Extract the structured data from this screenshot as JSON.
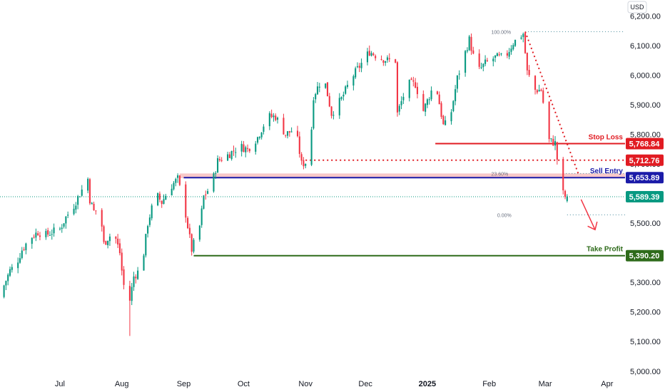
{
  "chart_data": {
    "type": "candlestick",
    "currency": "USD",
    "y_ticks": [
      5000,
      5100,
      5200,
      5300,
      5400,
      5500,
      5600,
      5700,
      5800,
      5900,
      6000,
      6100,
      6200
    ],
    "y_tick_labels": [
      "5,000.00",
      "5,100.00",
      "5,200.00",
      "5,300.00",
      "5,400.00",
      "5,500.00",
      "5,600.00",
      "5,700.00",
      "5,800.00",
      "5,900.00",
      "6,000.00",
      "6,100.00",
      "6,200.00"
    ],
    "ylim": [
      4985,
      6230
    ],
    "x_axis": {
      "start": "2024-06-01",
      "end": "2025-04-10",
      "ticks": [
        {
          "date": "2024-07-01",
          "label": "Jul"
        },
        {
          "date": "2024-08-01",
          "label": "Aug"
        },
        {
          "date": "2024-09-01",
          "label": "Sep"
        },
        {
          "date": "2024-10-01",
          "label": "Oct"
        },
        {
          "date": "2024-11-01",
          "label": "Nov"
        },
        {
          "date": "2024-12-01",
          "label": "Dec"
        },
        {
          "date": "2025-01-01",
          "label": "2025",
          "bold": true
        },
        {
          "date": "2025-02-01",
          "label": "Feb"
        },
        {
          "date": "2025-03-01",
          "label": "Mar"
        },
        {
          "date": "2025-04-01",
          "label": "Apr"
        }
      ]
    },
    "levels": [
      {
        "name": "Stop Loss",
        "value": 5768.84,
        "label": "5,768.84",
        "color": "#e11b22",
        "start": "2025-01-05"
      },
      {
        "name": "",
        "value": 5712.76,
        "label": "5,712.76",
        "color": "#e11b22",
        "start": "2024-11-01",
        "dotted": true
      },
      {
        "name": "Sell Entry",
        "value": 5653.89,
        "label": "5,653.89",
        "color": "#1b1ba8",
        "start": "2024-09-01"
      },
      {
        "name": "Take Profit",
        "value": 5390.2,
        "label": "5,390.20",
        "color": "#2e6b1a",
        "start": "2024-09-06"
      }
    ],
    "current_price": {
      "value": 5589.39,
      "label": "5,589.39",
      "color": "#089981"
    },
    "fib_levels": [
      {
        "label": "100.00%",
        "value": 6147
      },
      {
        "label": "23.60%",
        "value": 5668
      },
      {
        "label": "0.00%",
        "value": 5528
      }
    ],
    "closes": [
      {
        "date": "2024-06-01",
        "close": 5270
      },
      {
        "date": "2024-06-04",
        "close": 5290
      },
      {
        "date": "2024-06-07",
        "close": 5340
      },
      {
        "date": "2024-06-10",
        "close": 5360
      },
      {
        "date": "2024-06-13",
        "close": 5410
      },
      {
        "date": "2024-06-17",
        "close": 5450
      },
      {
        "date": "2024-06-21",
        "close": 5470
      },
      {
        "date": "2024-06-25",
        "close": 5460
      },
      {
        "date": "2024-06-28",
        "close": 5470
      },
      {
        "date": "2024-07-02",
        "close": 5480
      },
      {
        "date": "2024-07-05",
        "close": 5520
      },
      {
        "date": "2024-07-09",
        "close": 5560
      },
      {
        "date": "2024-07-12",
        "close": 5600
      },
      {
        "date": "2024-07-16",
        "close": 5650
      },
      {
        "date": "2024-07-17",
        "close": 5580
      },
      {
        "date": "2024-07-19",
        "close": 5540
      },
      {
        "date": "2024-07-22",
        "close": 5550
      },
      {
        "date": "2024-07-24",
        "close": 5430
      },
      {
        "date": "2024-07-26",
        "close": 5450
      },
      {
        "date": "2024-07-29",
        "close": 5470
      },
      {
        "date": "2024-08-01",
        "close": 5400
      },
      {
        "date": "2024-08-02",
        "close": 5340
      },
      {
        "date": "2024-08-05",
        "close": 5190
      },
      {
        "date": "2024-08-06",
        "close": 5240
      },
      {
        "date": "2024-08-08",
        "close": 5320
      },
      {
        "date": "2024-08-12",
        "close": 5350
      },
      {
        "date": "2024-08-15",
        "close": 5500
      },
      {
        "date": "2024-08-19",
        "close": 5600
      },
      {
        "date": "2024-08-22",
        "close": 5570
      },
      {
        "date": "2024-08-26",
        "close": 5620
      },
      {
        "date": "2024-08-30",
        "close": 5650
      },
      {
        "date": "2024-09-03",
        "close": 5530
      },
      {
        "date": "2024-09-06",
        "close": 5410
      },
      {
        "date": "2024-09-10",
        "close": 5490
      },
      {
        "date": "2024-09-12",
        "close": 5590
      },
      {
        "date": "2024-09-16",
        "close": 5630
      },
      {
        "date": "2024-09-19",
        "close": 5710
      },
      {
        "date": "2024-09-24",
        "close": 5730
      },
      {
        "date": "2024-09-30",
        "close": 5760
      },
      {
        "date": "2024-10-04",
        "close": 5750
      },
      {
        "date": "2024-10-09",
        "close": 5790
      },
      {
        "date": "2024-10-14",
        "close": 5860
      },
      {
        "date": "2024-10-18",
        "close": 5860
      },
      {
        "date": "2024-10-23",
        "close": 5800
      },
      {
        "date": "2024-10-28",
        "close": 5820
      },
      {
        "date": "2024-10-31",
        "close": 5700
      },
      {
        "date": "2024-11-04",
        "close": 5710
      },
      {
        "date": "2024-11-06",
        "close": 5930
      },
      {
        "date": "2024-11-11",
        "close": 6000
      },
      {
        "date": "2024-11-15",
        "close": 5870
      },
      {
        "date": "2024-11-20",
        "close": 5920
      },
      {
        "date": "2024-11-25",
        "close": 5990
      },
      {
        "date": "2024-11-29",
        "close": 6030
      },
      {
        "date": "2024-12-04",
        "close": 6080
      },
      {
        "date": "2024-12-09",
        "close": 6060
      },
      {
        "date": "2024-12-13",
        "close": 6050
      },
      {
        "date": "2024-12-17",
        "close": 6050
      },
      {
        "date": "2024-12-18",
        "close": 5870
      },
      {
        "date": "2024-12-23",
        "close": 5970
      },
      {
        "date": "2024-12-27",
        "close": 5970
      },
      {
        "date": "2024-12-31",
        "close": 5880
      },
      {
        "date": "2025-01-06",
        "close": 5980
      },
      {
        "date": "2025-01-10",
        "close": 5830
      },
      {
        "date": "2025-01-13",
        "close": 5840
      },
      {
        "date": "2025-01-17",
        "close": 5990
      },
      {
        "date": "2025-01-23",
        "close": 6120
      },
      {
        "date": "2025-01-27",
        "close": 6010
      },
      {
        "date": "2025-01-31",
        "close": 6040
      },
      {
        "date": "2025-02-05",
        "close": 6060
      },
      {
        "date": "2025-02-10",
        "close": 6060
      },
      {
        "date": "2025-02-14",
        "close": 6110
      },
      {
        "date": "2025-02-19",
        "close": 6140
      },
      {
        "date": "2025-02-21",
        "close": 6010
      },
      {
        "date": "2025-02-25",
        "close": 5950
      },
      {
        "date": "2025-02-28",
        "close": 5950
      },
      {
        "date": "2025-03-04",
        "close": 5780
      },
      {
        "date": "2025-03-07",
        "close": 5770
      },
      {
        "date": "2025-03-10",
        "close": 5610
      },
      {
        "date": "2025-03-12",
        "close": 5590
      }
    ]
  },
  "axis": {
    "currency_label": "USD"
  },
  "annotations": {
    "stop_loss": "Stop Loss",
    "sell_entry": "Sell Entry",
    "take_profit": "Take Profit"
  }
}
